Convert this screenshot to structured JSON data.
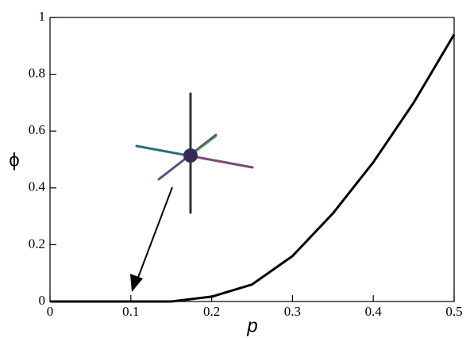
{
  "chart_data": {
    "type": "line",
    "x_label": "p",
    "y_label": "ϕ",
    "x": [
      0,
      0.05,
      0.1,
      0.15,
      0.2,
      0.25,
      0.3,
      0.35,
      0.4,
      0.45,
      0.5
    ],
    "series": [
      {
        "color": "#000000",
        "values": [
          0,
          0,
          0,
          0,
          0.017,
          0.06,
          0.16,
          0.31,
          0.49,
          0.7,
          0.94
        ]
      }
    ],
    "xlim": [
      0,
      0.5
    ],
    "xticks": [
      0,
      0.1,
      0.2,
      0.3,
      0.4,
      0.5
    ],
    "ylim": [
      0,
      1
    ],
    "yticks": [
      0,
      0.2,
      0.4,
      0.6,
      0.8,
      1
    ]
  }
}
